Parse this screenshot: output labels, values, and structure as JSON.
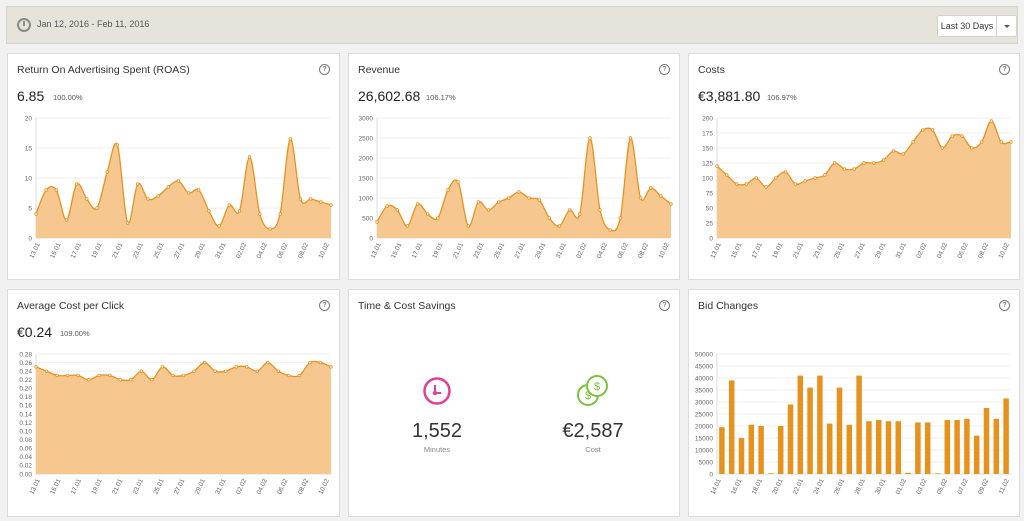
{
  "toolbar": {
    "date_range": "Jan 12, 2016 - Feb 11, 2016",
    "period": "Last 30 Days"
  },
  "colors": {
    "area_fill": "#f6c88f",
    "area_line": "#e8921e",
    "bar": "#e8921e",
    "minutes_icon": "#e0408f",
    "cost_icon": "#7cc23a"
  },
  "cards": {
    "roas": {
      "title": "Return On Advertising Spent (ROAS)",
      "value": "6.85",
      "percent": "100.00%"
    },
    "revenue": {
      "title": "Revenue",
      "value": "26,602.68",
      "percent": "106.17%"
    },
    "costs": {
      "title": "Costs",
      "value": "€3,881.80",
      "percent": "106.97%"
    },
    "cpc": {
      "title": "Average Cost per Click",
      "value": "€0.24",
      "percent": "109.00%"
    },
    "savings": {
      "title": "Time & Cost Savings",
      "minutes_value": "1,552",
      "minutes_label": "Minutes",
      "cost_value": "€2,587",
      "cost_label": "Cost"
    },
    "bids": {
      "title": "Bid Changes"
    }
  },
  "chart_data": [
    {
      "id": "roas",
      "type": "area",
      "x_labels": [
        "13.01",
        "15.01",
        "17.01",
        "19.01",
        "21.01",
        "23.01",
        "25.01",
        "27.01",
        "29.01",
        "31.01",
        "02.02",
        "04.02",
        "06.02",
        "08.02",
        "10.02"
      ],
      "values": [
        4,
        8,
        8,
        3,
        9,
        6.5,
        5,
        11,
        15.5,
        2.5,
        9,
        6.5,
        7,
        8.5,
        9.5,
        7.5,
        8,
        4.5,
        2,
        5.5,
        4.5,
        13.5,
        4,
        1.5,
        4,
        16.5,
        6.5,
        6.5,
        6,
        5.5
      ],
      "yticks": [
        0,
        5,
        10,
        15,
        20
      ],
      "ylim": [
        0,
        20
      ]
    },
    {
      "id": "revenue",
      "type": "area",
      "x_labels": [
        "13.01",
        "15.01",
        "17.01",
        "19.01",
        "21.01",
        "23.01",
        "25.01",
        "27.01",
        "29.01",
        "31.01",
        "02.02",
        "04.02",
        "06.02",
        "08.02",
        "10.02"
      ],
      "values": [
        400,
        800,
        700,
        300,
        850,
        600,
        500,
        1200,
        1400,
        300,
        900,
        700,
        900,
        1000,
        1150,
        1000,
        950,
        500,
        300,
        700,
        600,
        2500,
        700,
        200,
        500,
        2500,
        1000,
        1250,
        1050,
        850
      ],
      "yticks": [
        0,
        500,
        1000,
        1500,
        2000,
        2500,
        3000
      ],
      "ylim": [
        0,
        3000
      ]
    },
    {
      "id": "costs",
      "type": "area",
      "x_labels": [
        "13.01",
        "15.01",
        "17.01",
        "19.01",
        "21.01",
        "23.01",
        "25.01",
        "27.01",
        "29.01",
        "31.01",
        "02.02",
        "04.02",
        "06.02",
        "08.02",
        "10.02"
      ],
      "values": [
        120,
        105,
        90,
        90,
        100,
        85,
        100,
        110,
        90,
        95,
        100,
        105,
        125,
        115,
        115,
        125,
        125,
        130,
        145,
        140,
        160,
        180,
        180,
        150,
        170,
        170,
        150,
        160,
        195,
        160,
        160
      ],
      "yticks": [
        0,
        25,
        50,
        75,
        100,
        125,
        150,
        175,
        200
      ],
      "ylim": [
        0,
        200
      ]
    },
    {
      "id": "cpc",
      "type": "area",
      "x_labels": [
        "13.01",
        "15.01",
        "17.01",
        "19.01",
        "21.01",
        "23.01",
        "25.01",
        "27.01",
        "29.01",
        "31.01",
        "02.02",
        "04.02",
        "06.02",
        "08.02",
        "10.02"
      ],
      "values": [
        0.25,
        0.24,
        0.23,
        0.23,
        0.23,
        0.22,
        0.23,
        0.23,
        0.22,
        0.22,
        0.24,
        0.22,
        0.25,
        0.23,
        0.23,
        0.24,
        0.26,
        0.24,
        0.24,
        0.25,
        0.25,
        0.24,
        0.26,
        0.24,
        0.23,
        0.23,
        0.26,
        0.26,
        0.25
      ],
      "yticks": [
        0,
        0.02,
        0.04,
        0.06,
        0.08,
        0.1,
        0.12,
        0.14,
        0.16,
        0.18,
        0.2,
        0.22,
        0.24,
        0.26,
        0.28
      ],
      "ytick_labels": [
        "0.00",
        "0.02",
        "0.04",
        "0.06",
        "0.08",
        "0.10",
        "0.12",
        "0.14",
        "0.16",
        "0.18",
        "0.20",
        "0.22",
        "0.24",
        "0.26",
        "0.28"
      ],
      "ylim": [
        0,
        0.28
      ]
    },
    {
      "id": "bids",
      "type": "bar",
      "x_labels": [
        "14.01",
        "16.01",
        "18.01",
        "20.01",
        "22.01",
        "24.01",
        "26.01",
        "28.01",
        "30.01",
        "01.02",
        "03.02",
        "05.02",
        "07.02",
        "09.02",
        "11.02"
      ],
      "values": [
        19500,
        39000,
        15000,
        20500,
        20000,
        300,
        20000,
        29000,
        41000,
        36000,
        41000,
        21000,
        36000,
        20500,
        41000,
        22000,
        22500,
        22000,
        22000,
        500,
        21500,
        21500,
        300,
        22500,
        22500,
        23000,
        16000,
        27500,
        23000,
        31500
      ],
      "yticks": [
        0,
        5000,
        10000,
        15000,
        20000,
        25000,
        30000,
        35000,
        40000,
        45000,
        50000
      ],
      "ylim": [
        0,
        50000
      ]
    }
  ]
}
